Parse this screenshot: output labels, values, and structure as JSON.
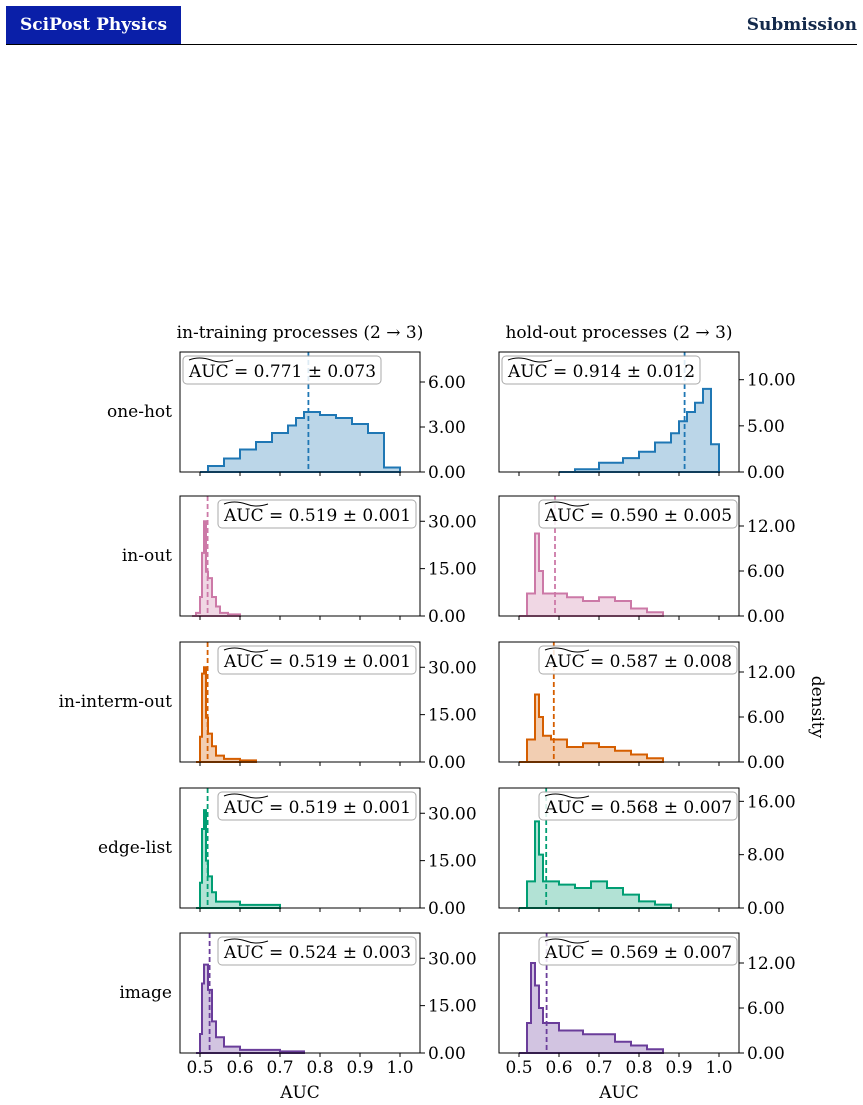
{
  "header": {
    "brand": "SciPost Physics",
    "section": "Submission"
  },
  "colors": {
    "one-hot": "#1f77b4",
    "in-out": "#cc79a7",
    "in-interm-out": "#d55e00",
    "edge-list": "#009e73",
    "image": "#6a3d9a"
  },
  "chart_data": {
    "type": "histogram-grid",
    "columns": [
      "in-training processes (2 → 3)",
      "hold-out processes (2 → 3)"
    ],
    "rows": [
      "one-hot",
      "in-out",
      "in-interm-out",
      "edge-list",
      "image"
    ],
    "xlabel": "AUC",
    "ylabel": "density",
    "xticks": [
      "0.5",
      "0.6",
      "0.7",
      "0.8",
      "0.9",
      "1.0"
    ],
    "xlim": [
      0.45,
      1.05
    ],
    "panels": [
      {
        "row": 0,
        "col": 0,
        "annotation": "0.771 ± 0.073",
        "median": 0.771,
        "ymax": 8.0,
        "yticks": [
          "0.00",
          "3.00",
          "6.00"
        ],
        "ytick_vals": [
          0,
          3,
          6
        ],
        "bins": [
          0.5,
          1.0
        ],
        "steps": [
          [
            0.5,
            0
          ],
          [
            0.52,
            0.4
          ],
          [
            0.56,
            0.9
          ],
          [
            0.6,
            1.5
          ],
          [
            0.64,
            2.0
          ],
          [
            0.68,
            2.6
          ],
          [
            0.72,
            3.1
          ],
          [
            0.74,
            3.6
          ],
          [
            0.76,
            4.0
          ],
          [
            0.8,
            3.8
          ],
          [
            0.84,
            3.6
          ],
          [
            0.88,
            3.2
          ],
          [
            0.92,
            2.6
          ],
          [
            0.96,
            0.3
          ],
          [
            1.0,
            0
          ]
        ]
      },
      {
        "row": 0,
        "col": 1,
        "annotation": "0.914 ± 0.012",
        "median": 0.914,
        "ymax": 13.0,
        "yticks": [
          "0.00",
          "5.00",
          "10.00"
        ],
        "ytick_vals": [
          0,
          5,
          10
        ],
        "bins": [
          0.5,
          1.0
        ],
        "steps": [
          [
            0.6,
            0
          ],
          [
            0.64,
            0.3
          ],
          [
            0.7,
            1.0
          ],
          [
            0.76,
            1.5
          ],
          [
            0.8,
            2.2
          ],
          [
            0.84,
            3.2
          ],
          [
            0.88,
            4.2
          ],
          [
            0.9,
            5.5
          ],
          [
            0.92,
            6.5
          ],
          [
            0.94,
            7.5
          ],
          [
            0.96,
            9.0
          ],
          [
            0.98,
            3.0
          ],
          [
            1.0,
            0
          ]
        ]
      },
      {
        "row": 1,
        "col": 0,
        "annotation": "0.519 ± 0.001",
        "median": 0.519,
        "ymax": 38.0,
        "yticks": [
          "0.00",
          "15.00",
          "30.00"
        ],
        "ytick_vals": [
          0,
          15,
          30
        ],
        "steps": [
          [
            0.48,
            0
          ],
          [
            0.49,
            1
          ],
          [
            0.5,
            6
          ],
          [
            0.505,
            20
          ],
          [
            0.51,
            30
          ],
          [
            0.515,
            14
          ],
          [
            0.52,
            12
          ],
          [
            0.53,
            6
          ],
          [
            0.54,
            3
          ],
          [
            0.55,
            1
          ],
          [
            0.57,
            0.5
          ],
          [
            0.6,
            0
          ]
        ]
      },
      {
        "row": 1,
        "col": 1,
        "annotation": "0.590 ± 0.005",
        "median": 0.59,
        "ymax": 16.0,
        "yticks": [
          "0.00",
          "6.00",
          "12.00"
        ],
        "ytick_vals": [
          0,
          6,
          12
        ],
        "steps": [
          [
            0.5,
            0
          ],
          [
            0.52,
            3
          ],
          [
            0.54,
            11
          ],
          [
            0.55,
            6
          ],
          [
            0.56,
            3
          ],
          [
            0.58,
            3
          ],
          [
            0.62,
            2.5
          ],
          [
            0.66,
            2
          ],
          [
            0.7,
            2.5
          ],
          [
            0.74,
            2
          ],
          [
            0.78,
            1
          ],
          [
            0.82,
            0.5
          ],
          [
            0.86,
            0
          ]
        ]
      },
      {
        "row": 2,
        "col": 0,
        "annotation": "0.519 ± 0.001",
        "median": 0.519,
        "ymax": 38.0,
        "yticks": [
          "0.00",
          "15.00",
          "30.00"
        ],
        "ytick_vals": [
          0,
          15,
          30
        ],
        "steps": [
          [
            0.49,
            0
          ],
          [
            0.5,
            8
          ],
          [
            0.505,
            28
          ],
          [
            0.51,
            30
          ],
          [
            0.515,
            14
          ],
          [
            0.52,
            9
          ],
          [
            0.53,
            5
          ],
          [
            0.54,
            2
          ],
          [
            0.56,
            1
          ],
          [
            0.6,
            0.5
          ],
          [
            0.64,
            0
          ]
        ]
      },
      {
        "row": 2,
        "col": 1,
        "annotation": "0.587 ± 0.008",
        "median": 0.587,
        "ymax": 16.0,
        "yticks": [
          "0.00",
          "6.00",
          "12.00"
        ],
        "ytick_vals": [
          0,
          6,
          12
        ],
        "steps": [
          [
            0.5,
            0
          ],
          [
            0.52,
            3
          ],
          [
            0.54,
            9
          ],
          [
            0.55,
            6
          ],
          [
            0.56,
            3.5
          ],
          [
            0.58,
            3
          ],
          [
            0.62,
            2
          ],
          [
            0.66,
            2.5
          ],
          [
            0.7,
            2
          ],
          [
            0.74,
            1.5
          ],
          [
            0.78,
            1
          ],
          [
            0.82,
            0.5
          ],
          [
            0.86,
            0
          ]
        ]
      },
      {
        "row": 3,
        "col": 0,
        "annotation": "0.519 ± 0.001",
        "median": 0.519,
        "ymax": 38.0,
        "yticks": [
          "0.00",
          "15.00",
          "30.00"
        ],
        "ytick_vals": [
          0,
          15,
          30
        ],
        "steps": [
          [
            0.49,
            0
          ],
          [
            0.5,
            8
          ],
          [
            0.505,
            25
          ],
          [
            0.51,
            31
          ],
          [
            0.515,
            15
          ],
          [
            0.52,
            10
          ],
          [
            0.53,
            5
          ],
          [
            0.54,
            2
          ],
          [
            0.6,
            1
          ],
          [
            0.7,
            0
          ]
        ]
      },
      {
        "row": 3,
        "col": 1,
        "annotation": "0.568 ± 0.007",
        "median": 0.568,
        "ymax": 18.0,
        "yticks": [
          "0.00",
          "8.00",
          "16.00"
        ],
        "ytick_vals": [
          0,
          8,
          16
        ],
        "steps": [
          [
            0.5,
            0
          ],
          [
            0.52,
            4
          ],
          [
            0.54,
            13
          ],
          [
            0.55,
            8
          ],
          [
            0.56,
            4
          ],
          [
            0.6,
            3.5
          ],
          [
            0.64,
            3
          ],
          [
            0.68,
            4
          ],
          [
            0.72,
            3
          ],
          [
            0.76,
            2
          ],
          [
            0.8,
            1
          ],
          [
            0.84,
            0.5
          ],
          [
            0.88,
            0
          ]
        ]
      },
      {
        "row": 4,
        "col": 0,
        "annotation": "0.524 ± 0.003",
        "median": 0.524,
        "ymax": 38.0,
        "yticks": [
          "0.00",
          "15.00",
          "30.00"
        ],
        "ytick_vals": [
          0,
          15,
          30
        ],
        "steps": [
          [
            0.49,
            0
          ],
          [
            0.5,
            6
          ],
          [
            0.505,
            22
          ],
          [
            0.51,
            28
          ],
          [
            0.52,
            20
          ],
          [
            0.53,
            10
          ],
          [
            0.54,
            5
          ],
          [
            0.56,
            2
          ],
          [
            0.6,
            1
          ],
          [
            0.7,
            0.5
          ],
          [
            0.76,
            0
          ]
        ]
      },
      {
        "row": 4,
        "col": 1,
        "annotation": "0.569 ± 0.007",
        "median": 0.569,
        "ymax": 16.0,
        "yticks": [
          "0.00",
          "6.00",
          "12.00"
        ],
        "ytick_vals": [
          0,
          6,
          12
        ],
        "steps": [
          [
            0.5,
            0
          ],
          [
            0.52,
            4
          ],
          [
            0.53,
            12
          ],
          [
            0.54,
            9
          ],
          [
            0.55,
            6
          ],
          [
            0.56,
            4
          ],
          [
            0.6,
            3
          ],
          [
            0.66,
            2.5
          ],
          [
            0.7,
            2.5
          ],
          [
            0.74,
            1.5
          ],
          [
            0.78,
            1
          ],
          [
            0.82,
            0.5
          ],
          [
            0.86,
            0
          ]
        ]
      }
    ]
  }
}
